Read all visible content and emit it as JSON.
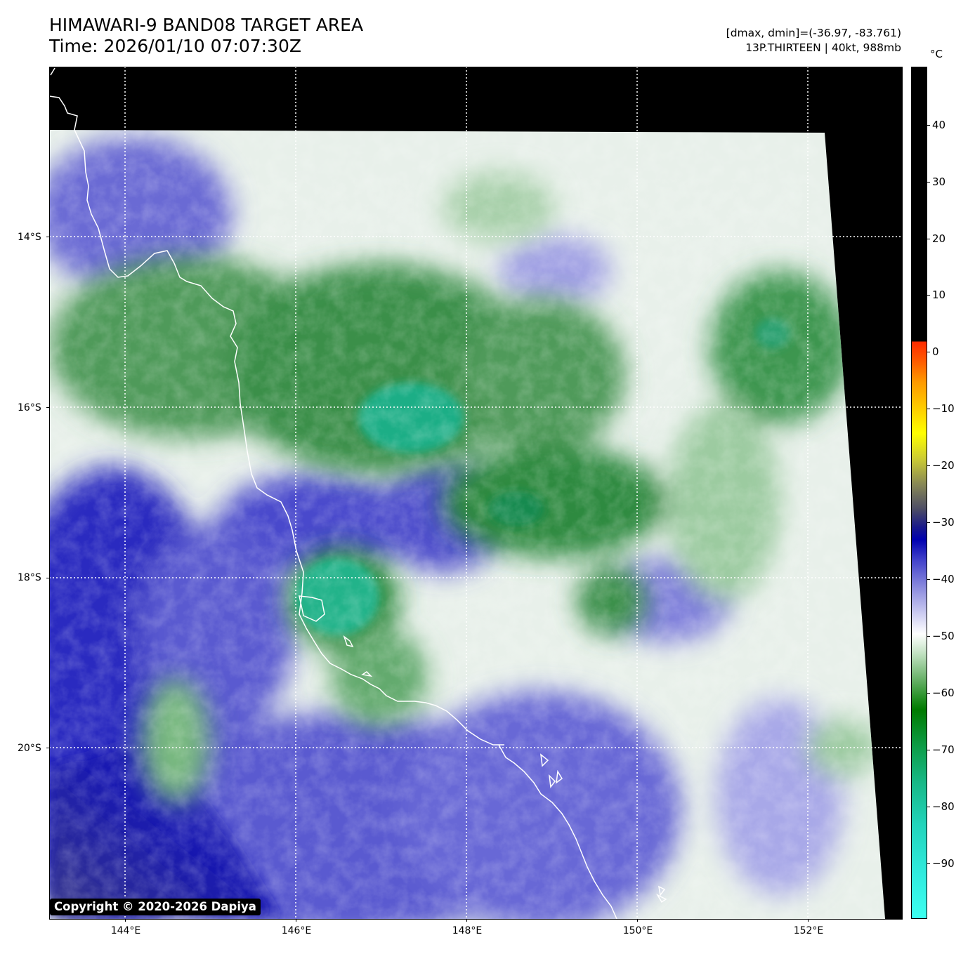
{
  "header": {
    "title": "HIMAWARI-9 BAND08 TARGET AREA",
    "time": "Time: 2026/01/10 07:07:30Z",
    "range_info": "[dmax, dmin]=(-36.97, -83.761)",
    "storm_info": "13P.THIRTEEN | 40kt, 988mb"
  },
  "map": {
    "lat_labels": [
      "14°S",
      "16°S",
      "18°S",
      "20°S"
    ],
    "lon_labels": [
      "144°E",
      "146°E",
      "148°E",
      "150°E",
      "152°E"
    ],
    "gridlines": "dotted white",
    "copyright": "Copyright © 2020-2026 Dapiya"
  },
  "colorbar": {
    "unit": "°C",
    "ticks": [
      "40",
      "30",
      "20",
      "10",
      "0",
      "−10",
      "−20",
      "−30",
      "−40",
      "−50",
      "−60",
      "−70",
      "−80",
      "−90"
    ]
  },
  "colors": {
    "no_data": "#000000",
    "warm_blue": "#2020b0",
    "cold_green": "#1a8a3a",
    "coldest_teal": "#20c090",
    "coastline": "#ffffff"
  }
}
